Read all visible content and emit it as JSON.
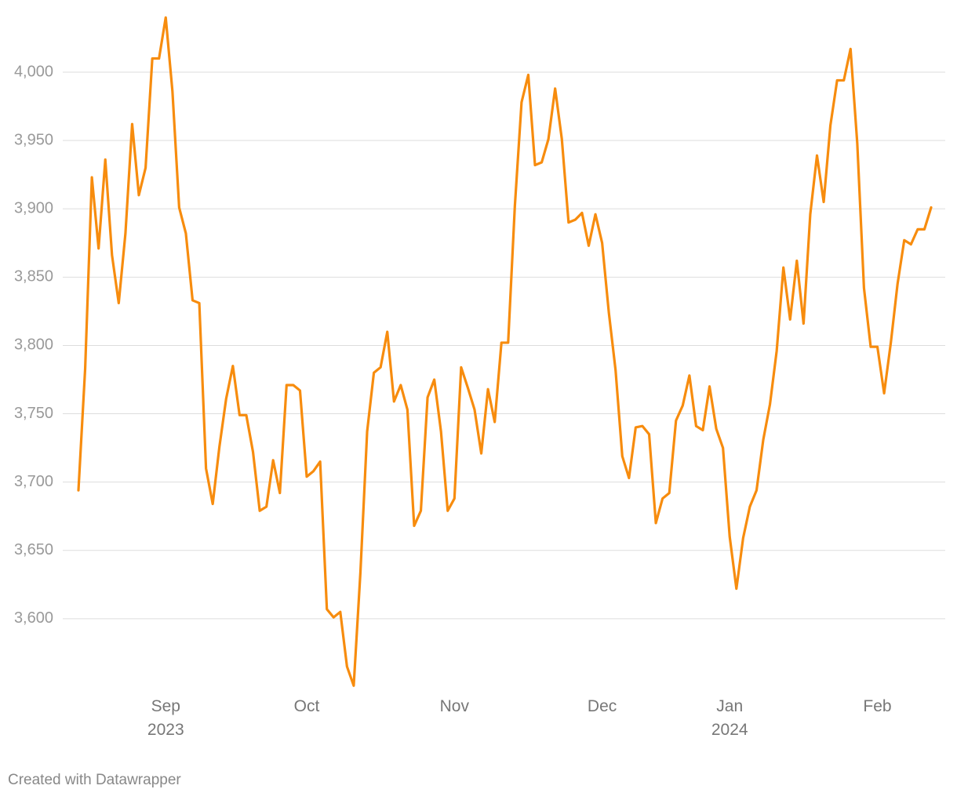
{
  "chart_data": {
    "type": "line",
    "categories": [
      null,
      null,
      null,
      null,
      null,
      null,
      null,
      null,
      null,
      null,
      null,
      null,
      null,
      "Sep\n2023",
      null,
      null,
      null,
      null,
      null,
      null,
      null,
      null,
      null,
      null,
      null,
      null,
      null,
      null,
      null,
      null,
      null,
      null,
      null,
      null,
      "Oct",
      null,
      null,
      null,
      null,
      null,
      null,
      null,
      null,
      null,
      null,
      null,
      null,
      null,
      null,
      null,
      null,
      null,
      null,
      null,
      null,
      null,
      "Nov",
      null,
      null,
      null,
      null,
      null,
      null,
      null,
      null,
      null,
      null,
      null,
      null,
      null,
      null,
      null,
      null,
      null,
      null,
      null,
      null,
      null,
      "Dec",
      null,
      null,
      null,
      null,
      null,
      null,
      null,
      null,
      null,
      null,
      null,
      null,
      null,
      null,
      null,
      null,
      null,
      null,
      "Jan\n2024",
      null,
      null,
      null,
      null,
      null,
      null,
      null,
      null,
      null,
      null,
      null,
      null,
      null,
      null,
      null,
      null,
      null,
      null,
      null,
      null,
      null,
      "Feb",
      null,
      null,
      null,
      null,
      null,
      null,
      null,
      null
    ],
    "values": [
      3694,
      3783,
      3923,
      3871,
      3936,
      3866,
      3831,
      3882,
      3962,
      3910,
      3930,
      4010,
      4010,
      4040,
      3986,
      3901,
      3882,
      3833,
      3831,
      3710,
      3684,
      3726,
      3761,
      3785,
      3749,
      3749,
      3722,
      3679,
      3682,
      3716,
      3692,
      3771,
      3771,
      3767,
      3704,
      3708,
      3715,
      3607,
      3601,
      3605,
      3565,
      3551,
      3634,
      3737,
      3780,
      3784,
      3810,
      3759,
      3771,
      3753,
      3668,
      3679,
      3762,
      3775,
      3737,
      3679,
      3688,
      3784,
      3769,
      3753,
      3721,
      3768,
      3744,
      3802,
      3802,
      3902,
      3978,
      3998,
      3932,
      3934,
      3951,
      3988,
      3951,
      3890,
      3892,
      3897,
      3873,
      3896,
      3875,
      3824,
      3782,
      3719,
      3703,
      3740,
      3741,
      3735,
      3670,
      3688,
      3692,
      3745,
      3756,
      3778,
      3741,
      3738,
      3770,
      3739,
      3725,
      3660,
      3622,
      3659,
      3682,
      3694,
      3731,
      3757,
      3796,
      3857,
      3819,
      3862,
      3816,
      3896,
      3939,
      3905,
      3961,
      3994,
      3994,
      4017,
      3948,
      3842,
      3799,
      3799,
      3765,
      3802,
      3845,
      3877,
      3874,
      3885,
      3885,
      3901
    ],
    "color": "#f78c0e",
    "ylim": [
      3550,
      4045
    ],
    "yticks": [
      {
        "value": 3600,
        "label": "3,600"
      },
      {
        "value": 3650,
        "label": "3,650"
      },
      {
        "value": 3700,
        "label": "3,700"
      },
      {
        "value": 3750,
        "label": "3,750"
      },
      {
        "value": 3800,
        "label": "3,800"
      },
      {
        "value": 3850,
        "label": "3,850"
      },
      {
        "value": 3900,
        "label": "3,900"
      },
      {
        "value": 3950,
        "label": "3,950"
      },
      {
        "value": 4000,
        "label": "4,000"
      }
    ],
    "grid": true,
    "credit": "Created with Datawrapper"
  }
}
